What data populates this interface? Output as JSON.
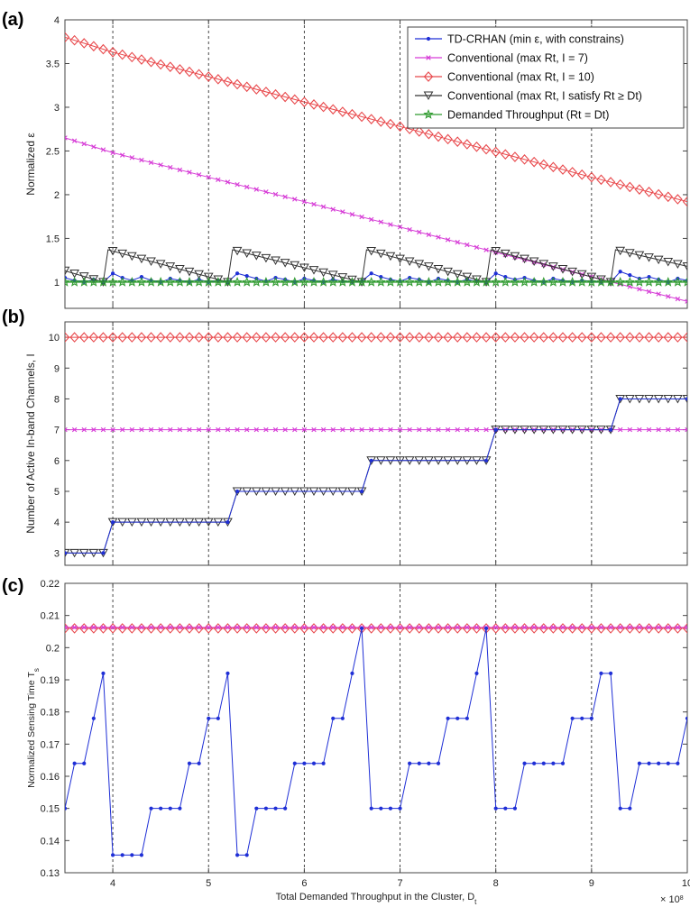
{
  "colors": {
    "td": "#1f2fd6",
    "conv7": "#d63ad6",
    "conv10": "#e8484b",
    "convSat": "#333333",
    "demand": "#2e9a2e"
  },
  "legend": {
    "td": "TD-CRHAN (min ε, with constrains)",
    "conv7": "Conventional (max Rt, I = 7)",
    "conv10": "Conventional (max Rt, I = 10)",
    "convSat": "Conventional (max Rt, I satisfy Rt ≥ Dt)",
    "demand": "Demanded Throughput (Rt = Dt)"
  },
  "chart_data": [
    {
      "panel": "(a)",
      "type": "line",
      "ylabel": "Normalized ε",
      "xlim": [
        3.5,
        10
      ],
      "ylim": [
        0.7,
        4
      ],
      "yticks": [
        1,
        1.5,
        2,
        2.5,
        3,
        3.5,
        4
      ],
      "series": [
        {
          "key": "td",
          "marker": "dot",
          "points": [
            [
              3.5,
              1.05
            ],
            [
              3.6,
              1.02
            ],
            [
              3.7,
              1.0
            ],
            [
              3.8,
              1.03
            ],
            [
              3.9,
              1.0
            ],
            [
              4.0,
              1.1
            ],
            [
              4.1,
              1.05
            ],
            [
              4.2,
              1.02
            ],
            [
              4.3,
              1.06
            ],
            [
              4.4,
              1.02
            ],
            [
              4.5,
              1.0
            ],
            [
              4.6,
              1.04
            ],
            [
              4.7,
              1.02
            ],
            [
              4.8,
              1.0
            ],
            [
              4.9,
              1.03
            ],
            [
              5.0,
              1.0
            ],
            [
              5.1,
              1.02
            ],
            [
              5.2,
              1.0
            ],
            [
              5.3,
              1.1
            ],
            [
              5.4,
              1.07
            ],
            [
              5.5,
              1.04
            ],
            [
              5.6,
              1.01
            ],
            [
              5.7,
              1.05
            ],
            [
              5.8,
              1.03
            ],
            [
              5.9,
              1.0
            ],
            [
              6.0,
              1.04
            ],
            [
              6.1,
              1.02
            ],
            [
              6.2,
              1.0
            ],
            [
              6.3,
              1.03
            ],
            [
              6.4,
              1.01
            ],
            [
              6.5,
              1.0
            ],
            [
              6.6,
              1.01
            ],
            [
              6.7,
              1.1
            ],
            [
              6.8,
              1.06
            ],
            [
              6.9,
              1.03
            ],
            [
              7.0,
              1.01
            ],
            [
              7.1,
              1.05
            ],
            [
              7.2,
              1.03
            ],
            [
              7.3,
              1.0
            ],
            [
              7.4,
              1.04
            ],
            [
              7.5,
              1.02
            ],
            [
              7.6,
              1.0
            ],
            [
              7.7,
              1.03
            ],
            [
              7.8,
              1.01
            ],
            [
              7.9,
              1.0
            ],
            [
              8.0,
              1.1
            ],
            [
              8.1,
              1.06
            ],
            [
              8.2,
              1.03
            ],
            [
              8.3,
              1.05
            ],
            [
              8.4,
              1.02
            ],
            [
              8.5,
              1.0
            ],
            [
              8.6,
              1.04
            ],
            [
              8.7,
              1.02
            ],
            [
              8.8,
              1.0
            ],
            [
              8.9,
              1.02
            ],
            [
              9.0,
              1.01
            ],
            [
              9.1,
              1.0
            ],
            [
              9.2,
              1.0
            ],
            [
              9.3,
              1.12
            ],
            [
              9.4,
              1.08
            ],
            [
              9.5,
              1.04
            ],
            [
              9.6,
              1.06
            ],
            [
              9.7,
              1.03
            ],
            [
              9.8,
              1.0
            ],
            [
              9.9,
              1.04
            ],
            [
              10.0,
              1.02
            ]
          ]
        },
        {
          "key": "conv7",
          "marker": "x",
          "points": [
            [
              3.5,
              2.65
            ],
            [
              4.0,
              2.48
            ],
            [
              5.0,
              2.2
            ],
            [
              6.0,
              1.92
            ],
            [
              7.0,
              1.63
            ],
            [
              8.0,
              1.34
            ],
            [
              9.0,
              1.06
            ],
            [
              10.0,
              0.78
            ]
          ]
        },
        {
          "key": "conv10",
          "marker": "diamond",
          "points": [
            [
              3.5,
              3.8
            ],
            [
              4.0,
              3.63
            ],
            [
              5.0,
              3.35
            ],
            [
              6.0,
              3.06
            ],
            [
              7.0,
              2.78
            ],
            [
              8.0,
              2.49
            ],
            [
              9.0,
              2.2
            ],
            [
              10.0,
              1.92
            ]
          ]
        },
        {
          "key": "convSat",
          "marker": "triangle",
          "points": [
            [
              3.5,
              1.13
            ],
            [
              3.9,
              1.0
            ],
            [
              3.95,
              1.37
            ],
            [
              5.2,
              1.0
            ],
            [
              5.25,
              1.37
            ],
            [
              6.6,
              1.0
            ],
            [
              6.65,
              1.37
            ],
            [
              7.9,
              1.0
            ],
            [
              7.95,
              1.37
            ],
            [
              9.2,
              1.0
            ],
            [
              9.25,
              1.37
            ],
            [
              10.0,
              1.18
            ]
          ]
        },
        {
          "key": "demand",
          "marker": "star",
          "points": [
            [
              3.5,
              1.0
            ],
            [
              10.0,
              1.0
            ]
          ]
        }
      ]
    },
    {
      "panel": "(b)",
      "type": "line",
      "ylabel": "Number of Active In-band Channels, I",
      "xlim": [
        3.5,
        10
      ],
      "ylim": [
        2.6,
        10.5
      ],
      "yticks": [
        3,
        4,
        5,
        6,
        7,
        8,
        9,
        10
      ],
      "series": [
        {
          "key": "conv10",
          "marker": "diamond",
          "points": [
            [
              3.5,
              10
            ],
            [
              10.0,
              10
            ]
          ]
        },
        {
          "key": "conv7",
          "marker": "x",
          "points": [
            [
              3.5,
              7
            ],
            [
              10.0,
              7
            ]
          ]
        },
        {
          "key": "convSat",
          "marker": "triangle",
          "points": [
            [
              3.5,
              3
            ],
            [
              3.9,
              3
            ],
            [
              4.0,
              4
            ],
            [
              5.2,
              4
            ],
            [
              5.3,
              5
            ],
            [
              6.6,
              5
            ],
            [
              6.7,
              6
            ],
            [
              7.9,
              6
            ],
            [
              8.0,
              7
            ],
            [
              9.2,
              7
            ],
            [
              9.3,
              8
            ],
            [
              10.0,
              8
            ]
          ]
        },
        {
          "key": "td",
          "marker": "dot",
          "points": [
            [
              3.5,
              3
            ],
            [
              3.9,
              3
            ],
            [
              4.0,
              4
            ],
            [
              5.2,
              4
            ],
            [
              5.3,
              5
            ],
            [
              6.6,
              5
            ],
            [
              6.7,
              6
            ],
            [
              7.9,
              6
            ],
            [
              8.0,
              7
            ],
            [
              9.2,
              7
            ],
            [
              9.3,
              8
            ],
            [
              10.0,
              8
            ]
          ]
        }
      ]
    },
    {
      "panel": "(c)",
      "type": "line",
      "ylabel": "Normalized Sensing Time Ts",
      "xlabel": "Total Demanded Throughput in the Cluster, Dt",
      "x_multiplier": "× 10^8",
      "xlim": [
        3.5,
        10
      ],
      "ylim": [
        0.13,
        0.22
      ],
      "xticks": [
        4,
        5,
        6,
        7,
        8,
        9,
        10
      ],
      "yticks": [
        0.13,
        0.14,
        0.15,
        0.16,
        0.17,
        0.18,
        0.19,
        0.2,
        0.21,
        0.22
      ],
      "series": [
        {
          "key": "conv10",
          "marker": "diamond",
          "points": [
            [
              3.5,
              0.206
            ],
            [
              10.0,
              0.206
            ]
          ]
        },
        {
          "key": "conv7",
          "marker": "x",
          "points": [
            [
              3.5,
              0.2063
            ],
            [
              10.0,
              0.2063
            ]
          ]
        },
        {
          "key": "td",
          "marker": "dot",
          "points": [
            [
              3.5,
              0.15
            ],
            [
              3.6,
              0.164
            ],
            [
              3.7,
              0.164
            ],
            [
              3.8,
              0.178
            ],
            [
              3.9,
              0.192
            ],
            [
              4.0,
              0.1355
            ],
            [
              4.1,
              0.1355
            ],
            [
              4.2,
              0.1355
            ],
            [
              4.3,
              0.1355
            ],
            [
              4.4,
              0.15
            ],
            [
              4.5,
              0.15
            ],
            [
              4.6,
              0.15
            ],
            [
              4.7,
              0.15
            ],
            [
              4.8,
              0.164
            ],
            [
              4.9,
              0.164
            ],
            [
              5.0,
              0.178
            ],
            [
              5.1,
              0.178
            ],
            [
              5.2,
              0.192
            ],
            [
              5.3,
              0.1355
            ],
            [
              5.4,
              0.1355
            ],
            [
              5.5,
              0.15
            ],
            [
              5.6,
              0.15
            ],
            [
              5.7,
              0.15
            ],
            [
              5.8,
              0.15
            ],
            [
              5.9,
              0.164
            ],
            [
              6.0,
              0.164
            ],
            [
              6.1,
              0.164
            ],
            [
              6.2,
              0.164
            ],
            [
              6.3,
              0.178
            ],
            [
              6.4,
              0.178
            ],
            [
              6.5,
              0.192
            ],
            [
              6.6,
              0.206
            ],
            [
              6.7,
              0.15
            ],
            [
              6.8,
              0.15
            ],
            [
              6.9,
              0.15
            ],
            [
              7.0,
              0.15
            ],
            [
              7.1,
              0.164
            ],
            [
              7.2,
              0.164
            ],
            [
              7.3,
              0.164
            ],
            [
              7.4,
              0.164
            ],
            [
              7.5,
              0.178
            ],
            [
              7.6,
              0.178
            ],
            [
              7.7,
              0.178
            ],
            [
              7.8,
              0.192
            ],
            [
              7.9,
              0.206
            ],
            [
              8.0,
              0.15
            ],
            [
              8.1,
              0.15
            ],
            [
              8.2,
              0.15
            ],
            [
              8.3,
              0.164
            ],
            [
              8.4,
              0.164
            ],
            [
              8.5,
              0.164
            ],
            [
              8.6,
              0.164
            ],
            [
              8.7,
              0.164
            ],
            [
              8.8,
              0.178
            ],
            [
              8.9,
              0.178
            ],
            [
              9.0,
              0.178
            ],
            [
              9.1,
              0.192
            ],
            [
              9.2,
              0.192
            ],
            [
              9.3,
              0.15
            ],
            [
              9.4,
              0.15
            ],
            [
              9.5,
              0.164
            ],
            [
              9.6,
              0.164
            ],
            [
              9.7,
              0.164
            ],
            [
              9.8,
              0.164
            ],
            [
              9.9,
              0.164
            ],
            [
              10.0,
              0.178
            ]
          ]
        }
      ]
    }
  ]
}
